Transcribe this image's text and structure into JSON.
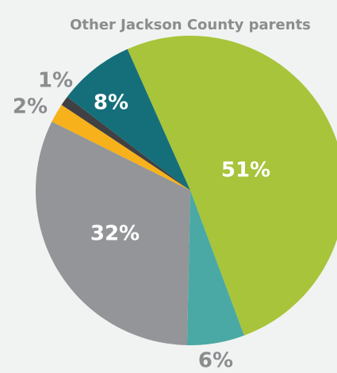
{
  "chart_data": {
    "type": "pie",
    "title": "Other Jackson County parents",
    "values": [
      51,
      6,
      32,
      2,
      1,
      8
    ],
    "value_labels": [
      "51%",
      "6%",
      "32%",
      "2%",
      "1%",
      "8%"
    ],
    "colors": [
      "#a8c43a",
      "#4aa9a4",
      "#939598",
      "#f7b21b",
      "#414042",
      "#156f7a"
    ]
  }
}
